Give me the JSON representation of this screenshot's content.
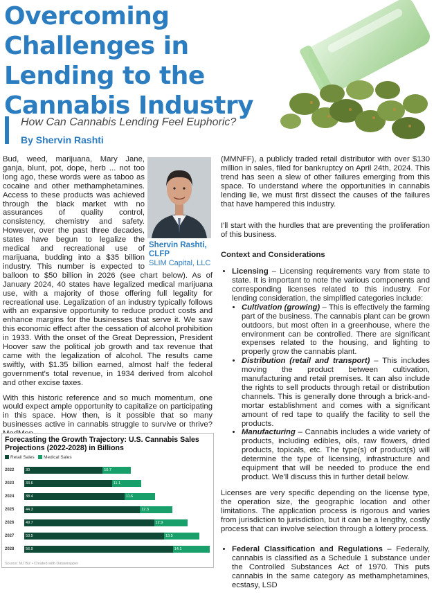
{
  "article": {
    "title": "Overcoming Challenges in Lending to the Cannabis Industry",
    "subtitle": "How Can Cannabis Lending Feel Euphoric?",
    "byline": "By Shervin Rashti"
  },
  "author_box": {
    "name": "Shervin Rashti, CLFP",
    "company": "SLIM Capital, LLC"
  },
  "left_col": [
    "Bud, weed, marijuana, Mary Jane, ganja, blunt, pot, dope, herb ... not too long ago, these words were as taboo as cocaine and other methamphetamines. Access to these products was achieved through the black market with no assurances of quality control, consistency, chemistry and safety. However, over the past three decades, states have begun to legalize the medical and recreational use of marijuana, budding into a $35 billion industry. This number is expected to balloon to $50 billion in 2026 (see chart below). As of January 2024, 40 states have legalized medical marijuana use, with a majority of those offering full legality for recreational use. Legalization of an industry typically follows with an expansive opportunity to reduce product costs and enhance margins for the businesses that serve it. We saw this economic effect after the cessation of alcohol prohibition in 1933. With the onset of the Great Depression, President Hoover saw the political job growth and tax revenue that came with the legalization of alcohol. The results came swiftly, with $1.35 billion earned, almost half the federal government's total revenue, in 1934 derived from alcohol and other excise taxes.",
    "With this historic reference and so much momentum, one would expect ample opportunity to capitalize on participating in this space. How then, is it possible that so many businesses active in cannabis struggle to survive or thrive? MedMen"
  ],
  "right_col": {
    "p1": "(MMNFF), a publicly traded retail distributor with over $130 million in sales, filed for bankruptcy on April 24th, 2024. This trend has seen a slew of other failures emerging from this space. To understand where the opportunities in cannabis lending lie, we must first dissect the causes of the failures that have hampered this industry.",
    "p2": "I'll start with the hurdles that are preventing the proliferation of this business.",
    "heading": "Context and Considerations",
    "licensing_label": "Licensing",
    "licensing_text": " – Licensing requirements vary from state to state. It is important to note the various components and corresponding licenses related to this industry. For lending consideration, the simplified categories include:",
    "sub_items": [
      {
        "label": "Cultivation (growing)",
        "text": " – This is effectively the farming part of the business. The cannabis plant can be grown outdoors, but most often in a greenhouse, where the environment can be controlled. There are significant expenses related to the housing, and lighting to properly grow the cannabis plant."
      },
      {
        "label": "Distribution (retail and transport)",
        "text": " – This includes moving the product between cultivation, manufacturing and retail premises. It can also include the rights to sell products through retail or distribution channels. This is generally done through a brick-and-mortar establishment and comes with a significant amount of red tape to qualify the facility to sell the products."
      },
      {
        "label": "Manufacturing",
        "text": " – Cannabis includes a wide variety of products, including edibles, oils, raw flowers, dried products, topicals, etc. The type(s) of product(s) will determine the type of licensing, infrastructure and equipment that will be needed to produce the end product. We'll discuss this in further detail below."
      }
    ],
    "p3": "Licenses are very specific depending on the license type, the operation size, the geographic location and other limitations. The application process is rigorous and varies from jurisdiction to jurisdiction, but it can be a lengthy, costly process that can involve selection through a lottery process.",
    "federal_label": "Federal Classification and Regulations",
    "federal_text": " – Federally, cannabis is classified as a Schedule 1 substance under the Controlled Substances Act of 1970. This puts cannabis in the same category as methamphetamines, ecstasy, LSD"
  },
  "chart_data": {
    "type": "bar",
    "title": "Forecasting the Growth Trajectory: U.S. Cannabis Sales Projections (2022-2028) in Billions",
    "categories": [
      "2022",
      "2023",
      "2024",
      "2025",
      "2026",
      "2027",
      "2028"
    ],
    "series": [
      {
        "name": "Retail Sales",
        "color": "#0e4a35",
        "values": [
          30,
          33.6,
          38.4,
          44.3,
          49.7,
          53.5,
          56.9
        ]
      },
      {
        "name": "Medical Sales",
        "color": "#19a06a",
        "values": [
          10.7,
          11.1,
          11.6,
          12.3,
          12.9,
          13.5,
          14.1
        ]
      }
    ],
    "stacked": true,
    "orientation": "horizontal",
    "xlim": [
      0,
      71
    ],
    "source": "Source: MJ Biz • Created with Datawrapper"
  },
  "colors": {
    "accent": "#2c7cc0",
    "retail": "#0e4a35",
    "medical": "#19a06a"
  }
}
